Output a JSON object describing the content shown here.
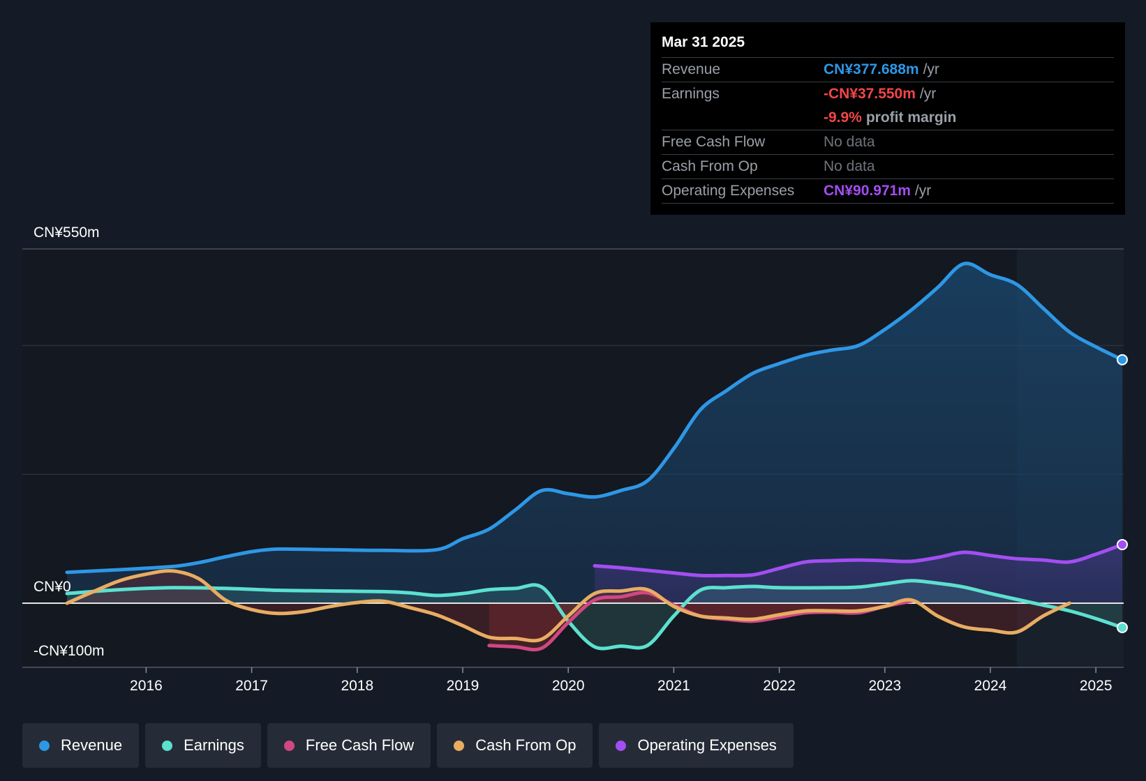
{
  "colors": {
    "revenue": "#2e97e6",
    "earnings": "#5ce0cf",
    "free_cash_flow": "#d04882",
    "cash_from_op": "#e8ad62",
    "operating_expenses": "#a34ef2",
    "negative": "#f2464a"
  },
  "tooltip": {
    "date": "Mar 31 2025",
    "rows": [
      {
        "label": "Revenue",
        "value": "CN¥377.688m",
        "unit": "/yr"
      },
      {
        "label": "Earnings",
        "value": "-CN¥37.550m",
        "unit": "/yr"
      },
      {
        "label": "",
        "value": "-9.9%",
        "unit": "profit margin"
      },
      {
        "label": "Free Cash Flow",
        "value": "No data",
        "unit": ""
      },
      {
        "label": "Cash From Op",
        "value": "No data",
        "unit": ""
      },
      {
        "label": "Operating Expenses",
        "value": "CN¥90.971m",
        "unit": "/yr"
      }
    ]
  },
  "legend": [
    {
      "label": "Revenue",
      "key": "revenue"
    },
    {
      "label": "Earnings",
      "key": "earnings"
    },
    {
      "label": "Free Cash Flow",
      "key": "free_cash_flow"
    },
    {
      "label": "Cash From Op",
      "key": "cash_from_op"
    },
    {
      "label": "Operating Expenses",
      "key": "operating_expenses"
    }
  ],
  "chart_data": {
    "type": "area",
    "y_top_label": "CN¥550m",
    "y_zero_label": "CN¥0",
    "y_bottom_label": "-CN¥100m",
    "ylim": [
      -100,
      550
    ],
    "xlim": [
      2015.25,
      2025.25
    ],
    "x_ticks": [
      2016,
      2017,
      2018,
      2019,
      2020,
      2021,
      2022,
      2023,
      2024,
      2025
    ],
    "x_tick_labels": [
      "2016",
      "2017",
      "2018",
      "2019",
      "2020",
      "2021",
      "2022",
      "2023",
      "2024",
      "2025"
    ],
    "gridlines": [
      550,
      400,
      200,
      0,
      -100
    ],
    "forecast_start": 2024.25,
    "series": [
      {
        "name": "Revenue",
        "key": "revenue",
        "end_marker": true,
        "points": [
          [
            2015.25,
            48
          ],
          [
            2015.75,
            52
          ],
          [
            2016.25,
            57
          ],
          [
            2016.5,
            63
          ],
          [
            2016.75,
            72
          ],
          [
            2017,
            80
          ],
          [
            2017.25,
            84
          ],
          [
            2017.75,
            83
          ],
          [
            2018.25,
            82
          ],
          [
            2018.75,
            83
          ],
          [
            2019,
            100
          ],
          [
            2019.25,
            115
          ],
          [
            2019.5,
            145
          ],
          [
            2019.75,
            175
          ],
          [
            2020,
            170
          ],
          [
            2020.25,
            165
          ],
          [
            2020.5,
            175
          ],
          [
            2020.75,
            190
          ],
          [
            2021,
            240
          ],
          [
            2021.25,
            300
          ],
          [
            2021.5,
            330
          ],
          [
            2021.75,
            357
          ],
          [
            2022,
            372
          ],
          [
            2022.25,
            385
          ],
          [
            2022.5,
            393
          ],
          [
            2022.75,
            400
          ],
          [
            2023,
            425
          ],
          [
            2023.25,
            455
          ],
          [
            2023.5,
            490
          ],
          [
            2023.75,
            527
          ],
          [
            2024,
            510
          ],
          [
            2024.25,
            495
          ],
          [
            2024.5,
            458
          ],
          [
            2024.75,
            421
          ],
          [
            2025,
            398
          ],
          [
            2025.25,
            378
          ]
        ]
      },
      {
        "name": "Operating Expenses",
        "key": "operating_expenses",
        "end_marker": true,
        "points": [
          [
            2020.25,
            58
          ],
          [
            2020.5,
            55
          ],
          [
            2020.75,
            51
          ],
          [
            2021,
            47
          ],
          [
            2021.25,
            43
          ],
          [
            2021.5,
            43
          ],
          [
            2021.75,
            44
          ],
          [
            2022,
            54
          ],
          [
            2022.25,
            64
          ],
          [
            2022.5,
            66
          ],
          [
            2022.75,
            67
          ],
          [
            2023,
            66
          ],
          [
            2023.25,
            65
          ],
          [
            2023.5,
            71
          ],
          [
            2023.75,
            79
          ],
          [
            2024,
            74
          ],
          [
            2024.25,
            69
          ],
          [
            2024.5,
            67
          ],
          [
            2024.75,
            64
          ],
          [
            2025,
            76
          ],
          [
            2025.25,
            91
          ]
        ]
      },
      {
        "name": "Earnings",
        "key": "earnings",
        "end_marker": true,
        "points": [
          [
            2015.25,
            15
          ],
          [
            2015.75,
            21
          ],
          [
            2016.25,
            24
          ],
          [
            2016.75,
            23
          ],
          [
            2017.25,
            20
          ],
          [
            2017.75,
            19
          ],
          [
            2018.25,
            18
          ],
          [
            2018.5,
            16
          ],
          [
            2018.75,
            12
          ],
          [
            2019,
            15
          ],
          [
            2019.25,
            21
          ],
          [
            2019.5,
            23
          ],
          [
            2019.75,
            25
          ],
          [
            2020,
            -28
          ],
          [
            2020.25,
            -68
          ],
          [
            2020.5,
            -67
          ],
          [
            2020.75,
            -66
          ],
          [
            2021,
            -20
          ],
          [
            2021.25,
            20
          ],
          [
            2021.5,
            24
          ],
          [
            2021.75,
            26
          ],
          [
            2022,
            24
          ],
          [
            2022.5,
            24
          ],
          [
            2022.75,
            25
          ],
          [
            2023,
            30
          ],
          [
            2023.25,
            35
          ],
          [
            2023.5,
            31
          ],
          [
            2023.75,
            25
          ],
          [
            2024,
            15
          ],
          [
            2024.25,
            6
          ],
          [
            2024.5,
            -3
          ],
          [
            2024.75,
            -12
          ],
          [
            2025,
            -24
          ],
          [
            2025.25,
            -38
          ]
        ]
      },
      {
        "name": "Free Cash Flow",
        "key": "free_cash_flow",
        "end_marker": false,
        "points": [
          [
            2019.25,
            -66
          ],
          [
            2019.5,
            -68
          ],
          [
            2019.75,
            -70
          ],
          [
            2020,
            -30
          ],
          [
            2020.25,
            5
          ],
          [
            2020.5,
            10
          ],
          [
            2020.75,
            16
          ],
          [
            2021,
            -3
          ],
          [
            2021.25,
            -20
          ],
          [
            2021.5,
            -25
          ],
          [
            2021.75,
            -28
          ],
          [
            2022,
            -22
          ],
          [
            2022.25,
            -15
          ],
          [
            2022.5,
            -14
          ],
          [
            2022.75,
            -15
          ],
          [
            2023,
            -5
          ],
          [
            2023.25,
            3
          ]
        ]
      },
      {
        "name": "Cash From Op",
        "key": "cash_from_op",
        "end_marker": false,
        "points": [
          [
            2015.25,
            0
          ],
          [
            2015.5,
            18
          ],
          [
            2015.75,
            35
          ],
          [
            2016,
            45
          ],
          [
            2016.25,
            50
          ],
          [
            2016.5,
            38
          ],
          [
            2016.75,
            5
          ],
          [
            2017,
            -10
          ],
          [
            2017.25,
            -16
          ],
          [
            2017.5,
            -13
          ],
          [
            2017.75,
            -5
          ],
          [
            2018,
            1
          ],
          [
            2018.25,
            3
          ],
          [
            2018.5,
            -7
          ],
          [
            2018.75,
            -18
          ],
          [
            2019,
            -35
          ],
          [
            2019.25,
            -53
          ],
          [
            2019.5,
            -55
          ],
          [
            2019.75,
            -56
          ],
          [
            2020,
            -20
          ],
          [
            2020.25,
            15
          ],
          [
            2020.5,
            19
          ],
          [
            2020.75,
            21
          ],
          [
            2021,
            -5
          ],
          [
            2021.25,
            -20
          ],
          [
            2021.5,
            -23
          ],
          [
            2021.75,
            -25
          ],
          [
            2022,
            -18
          ],
          [
            2022.25,
            -12
          ],
          [
            2022.5,
            -12
          ],
          [
            2022.75,
            -12
          ],
          [
            2023,
            -5
          ],
          [
            2023.25,
            5
          ],
          [
            2023.5,
            -20
          ],
          [
            2023.75,
            -37
          ],
          [
            2024,
            -42
          ],
          [
            2024.25,
            -45
          ],
          [
            2024.5,
            -20
          ],
          [
            2024.75,
            0
          ]
        ]
      }
    ]
  }
}
